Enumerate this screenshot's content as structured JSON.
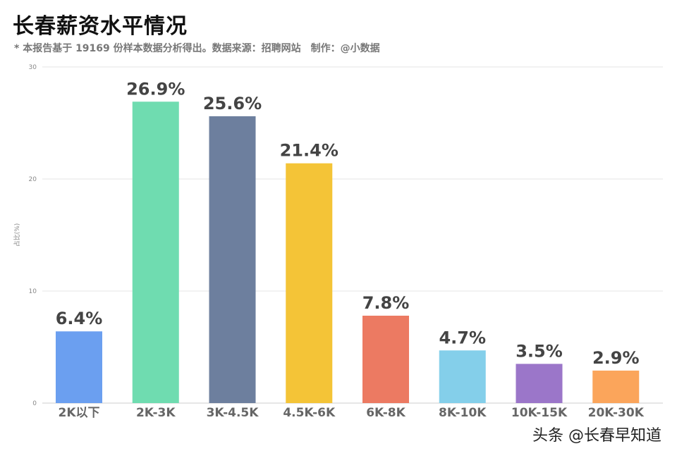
{
  "header": {
    "title": "长春薪资水平情况",
    "subtitle": "* 本报告基于 19169 份样本数据分析得出。数据来源：招聘网站　制作：@小数据"
  },
  "footer": {
    "watermark": "头条 @长春早知道"
  },
  "chart_data": {
    "type": "bar",
    "title": "长春薪资水平情况",
    "xlabel": "",
    "ylabel": "占比(%)",
    "ylim": [
      0,
      30
    ],
    "yticks": [
      "0",
      "10",
      "20",
      "30"
    ],
    "grid": true,
    "categories": [
      "2K以下",
      "2K-3K",
      "3K-4.5K",
      "4.5K-6K",
      "6K-8K",
      "8K-10K",
      "10K-15K",
      "20K-30K"
    ],
    "values": [
      6.4,
      26.9,
      25.6,
      21.4,
      7.8,
      4.7,
      3.5,
      2.9
    ],
    "data_labels": [
      "6.4%",
      "26.9%",
      "25.6%",
      "21.4%",
      "7.8%",
      "4.7%",
      "3.5%",
      "2.9%"
    ],
    "colors": [
      "#6b9ff0",
      "#6fdcb0",
      "#6d7f9e",
      "#f4c437",
      "#ec7a62",
      "#84cfea",
      "#9b76c9",
      "#fba55b"
    ],
    "tick_color": "#888888",
    "grid_color": "#e6e6e6"
  }
}
